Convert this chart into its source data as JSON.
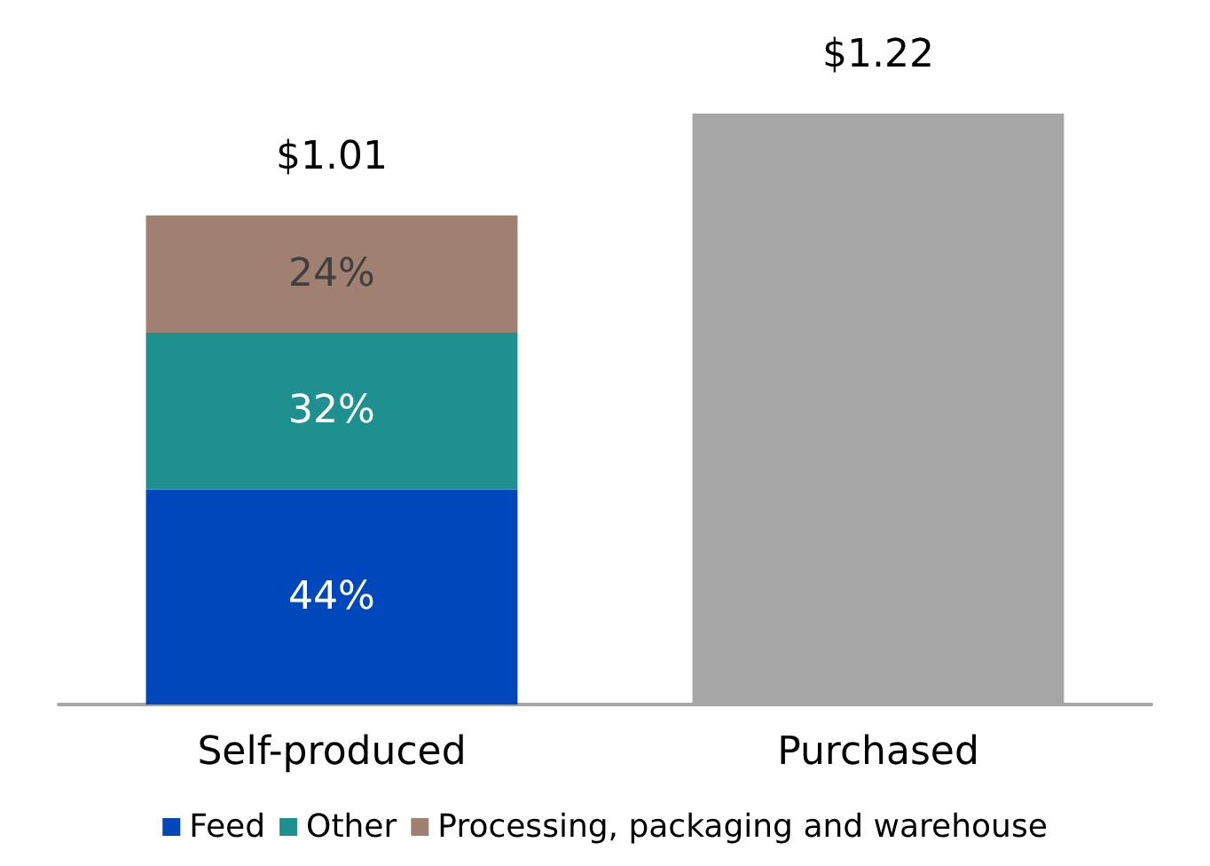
{
  "chart_data": {
    "type": "bar",
    "stacked": true,
    "categories": [
      "Self-produced",
      "Purchased"
    ],
    "series": [
      {
        "name": "Feed",
        "color": "#0047bb",
        "values": [
          0.4444,
          null
        ],
        "value_labels": [
          "44%",
          null
        ]
      },
      {
        "name": "Other",
        "color": "#1e9090",
        "values": [
          0.3232,
          null
        ],
        "value_labels": [
          "32%",
          null
        ]
      },
      {
        "name": "Processing, packaging and warehouse",
        "color": "#a08070",
        "values": [
          0.2424,
          null
        ],
        "value_labels": [
          "24%",
          null
        ]
      },
      {
        "color": "#a6a6a6",
        "values": [
          null,
          1.22
        ]
      }
    ],
    "totals": [
      "$1.01",
      "$1.22"
    ],
    "legend": "bottom"
  }
}
